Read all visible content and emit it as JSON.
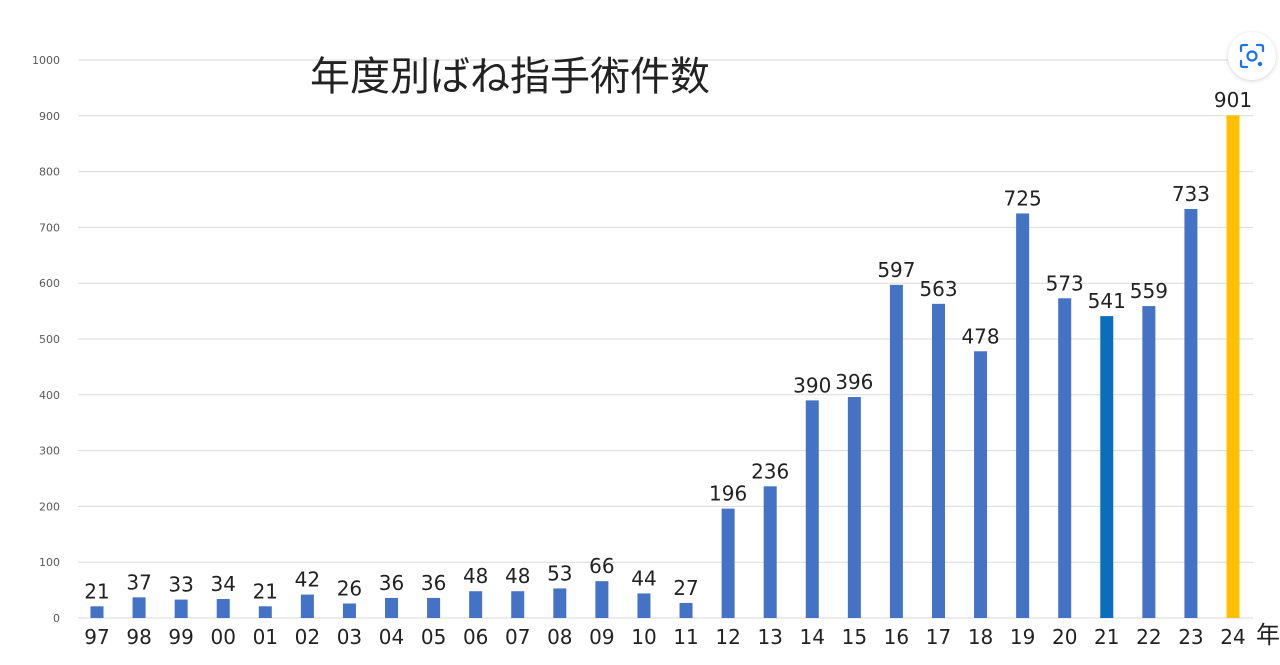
{
  "chart_data": {
    "type": "bar",
    "title": "年度別ばね指手術件数",
    "x_unit_label": "年",
    "ylim": [
      0,
      1000
    ],
    "yticks": [
      0,
      100,
      200,
      300,
      400,
      500,
      600,
      700,
      800,
      900,
      1000
    ],
    "grid": true,
    "categories": [
      "97",
      "98",
      "99",
      "00",
      "01",
      "02",
      "03",
      "04",
      "05",
      "06",
      "07",
      "08",
      "09",
      "10",
      "11",
      "12",
      "13",
      "14",
      "15",
      "16",
      "17",
      "18",
      "19",
      "20",
      "21",
      "22",
      "23",
      "24"
    ],
    "values": [
      21,
      37,
      33,
      34,
      21,
      42,
      26,
      36,
      36,
      48,
      48,
      53,
      66,
      44,
      27,
      196,
      236,
      390,
      396,
      597,
      563,
      478,
      725,
      573,
      541,
      559,
      733,
      901
    ],
    "colors": {
      "default": "#4472C4",
      "highlight_21": "#0A6EBD",
      "highlight_24": "#FFC000",
      "grid": "#D9D9D9",
      "axis_text": "#595959",
      "label_text": "#222222"
    },
    "bar_colors": {
      "21": "#0A6EBD",
      "24": "#FFC000"
    }
  },
  "ui": {
    "lens_icon": "visual-search-icon",
    "lens_color": "#1A73E8"
  }
}
